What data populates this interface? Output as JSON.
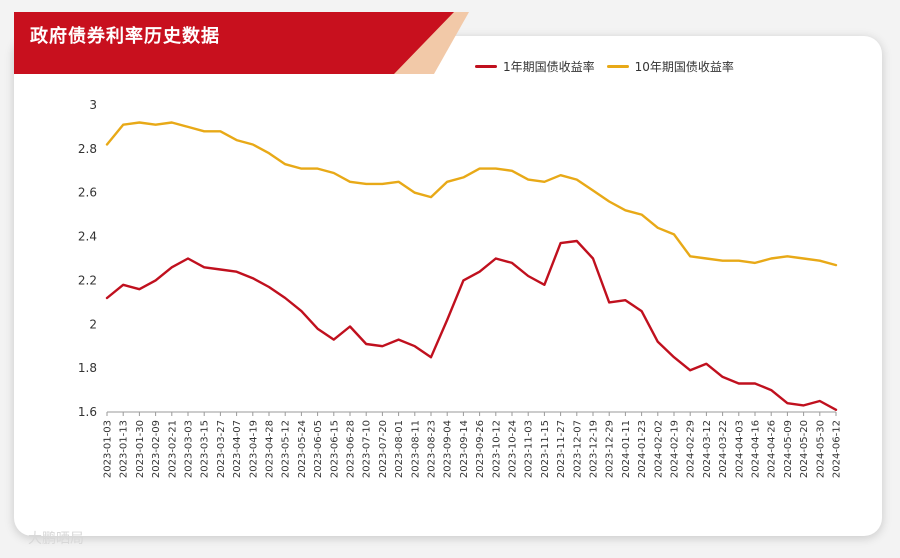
{
  "banner": {
    "title": "政府债券利率历史数据"
  },
  "watermark": "大鹏晒局",
  "chart_data": {
    "type": "line",
    "title": "政府债券利率历史数据",
    "xlabel": "",
    "ylabel": "",
    "ylim": [
      1.6,
      3.0
    ],
    "yticks": [
      1.6,
      1.8,
      2.0,
      2.2,
      2.4,
      2.6,
      2.8,
      3.0
    ],
    "ytick_labels": [
      "1.6",
      "1.8",
      "2",
      "2.2",
      "2.4",
      "2.6",
      "2.8",
      "3"
    ],
    "grid": false,
    "legend_position": "top-right",
    "x_tick_labels": [
      "2023-01-03",
      "2023-01-13",
      "2023-01-30",
      "2023-02-09",
      "2023-02-21",
      "2023-03-03",
      "2023-03-15",
      "2023-03-27",
      "2023-04-07",
      "2023-04-19",
      "2023-04-28",
      "2023-05-12",
      "2023-05-24",
      "2023-06-05",
      "2023-06-15",
      "2023-06-28",
      "2023-07-10",
      "2023-07-20",
      "2023-08-01",
      "2023-08-11",
      "2023-08-23",
      "2023-09-04",
      "2023-09-14",
      "2023-09-26",
      "2023-10-12",
      "2023-10-24",
      "2023-11-03",
      "2023-11-15",
      "2023-11-27",
      "2023-12-07",
      "2023-12-19",
      "2023-12-29",
      "2024-01-11",
      "2024-01-23",
      "2024-02-02",
      "2024-02-19",
      "2024-02-29",
      "2024-03-12",
      "2024-03-22",
      "2024-04-03",
      "2024-04-16",
      "2024-04-26",
      "2024-05-09",
      "2024-05-20",
      "2024-05-30",
      "2024-06-12"
    ],
    "x_index": [
      0,
      1,
      2,
      3,
      4,
      5,
      6,
      7,
      8,
      9,
      10,
      11,
      12,
      13,
      14,
      15,
      16,
      17,
      18,
      19,
      20,
      21,
      22,
      23,
      24,
      25,
      26,
      27,
      28,
      29,
      30,
      31,
      32,
      33,
      34,
      35,
      36,
      37,
      38,
      39,
      40,
      41,
      42,
      43,
      44,
      45
    ],
    "series": [
      {
        "name": "1年期国债收益率",
        "color": "#c0101e",
        "values": [
          2.12,
          2.18,
          2.16,
          2.2,
          2.26,
          2.3,
          2.26,
          2.25,
          2.24,
          2.21,
          2.17,
          2.12,
          2.06,
          1.98,
          1.93,
          1.99,
          1.91,
          1.9,
          1.93,
          1.9,
          1.85,
          2.02,
          2.2,
          2.24,
          2.3,
          2.28,
          2.22,
          2.18,
          2.37,
          2.38,
          2.3,
          2.1,
          2.11,
          2.06,
          1.92,
          1.85,
          1.79,
          1.82,
          1.76,
          1.73,
          1.73,
          1.7,
          1.64,
          1.63,
          1.65,
          1.61
        ]
      },
      {
        "name": "10年期国债收益率",
        "color": "#e8a917",
        "values": [
          2.82,
          2.91,
          2.92,
          2.91,
          2.92,
          2.9,
          2.88,
          2.88,
          2.84,
          2.82,
          2.78,
          2.73,
          2.71,
          2.71,
          2.69,
          2.65,
          2.64,
          2.64,
          2.65,
          2.6,
          2.58,
          2.65,
          2.67,
          2.71,
          2.71,
          2.7,
          2.66,
          2.65,
          2.68,
          2.66,
          2.61,
          2.56,
          2.52,
          2.5,
          2.44,
          2.41,
          2.31,
          2.3,
          2.29,
          2.29,
          2.28,
          2.3,
          2.31,
          2.3,
          2.29,
          2.27
        ]
      }
    ]
  }
}
